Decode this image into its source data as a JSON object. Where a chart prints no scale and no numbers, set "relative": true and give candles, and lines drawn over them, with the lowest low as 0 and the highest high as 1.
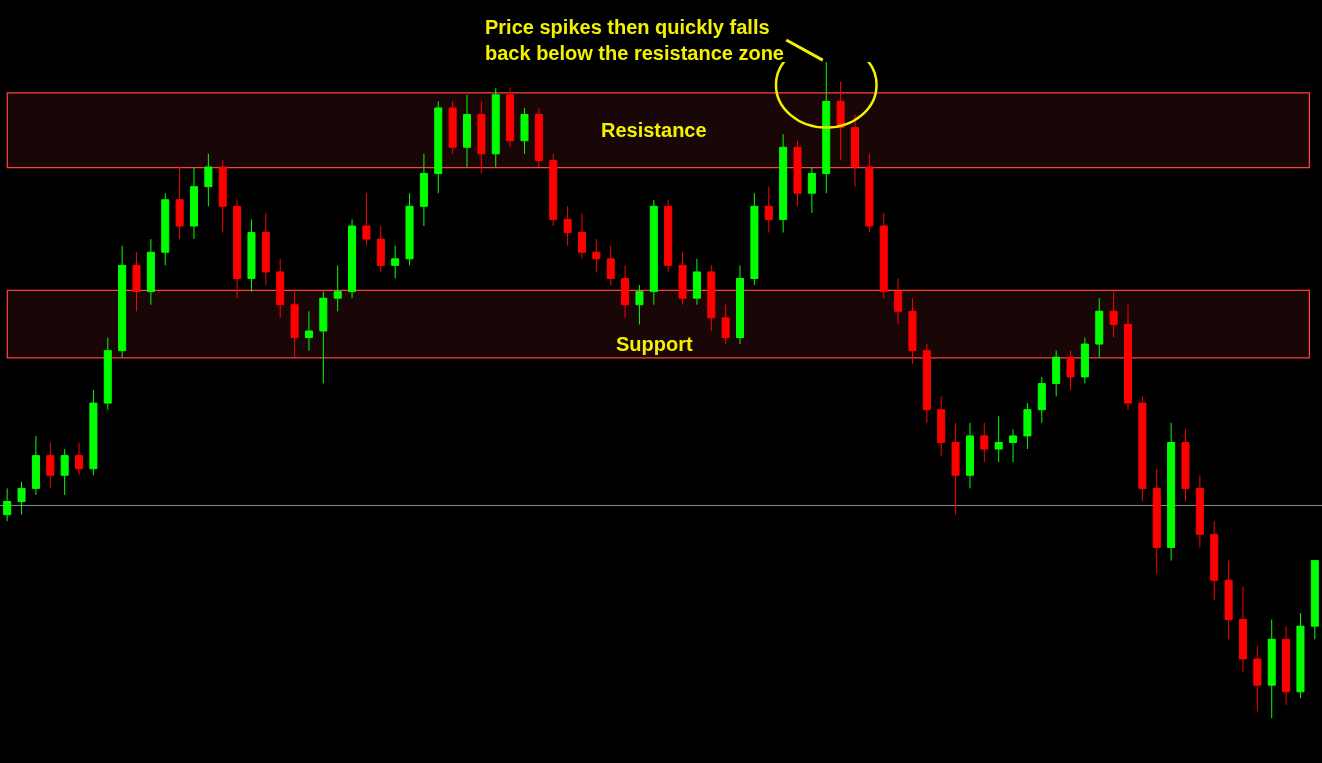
{
  "chart_data": {
    "type": "candlestick",
    "relative": true,
    "categories": [
      null,
      null,
      null,
      null,
      null,
      null,
      null,
      null,
      null,
      null,
      null,
      null,
      null,
      null,
      null,
      null,
      null,
      null,
      null,
      null,
      null,
      null,
      null,
      null,
      null,
      null,
      null,
      null,
      null,
      null,
      null,
      null,
      null,
      null,
      null,
      null,
      null,
      null,
      null,
      null,
      null,
      null,
      null,
      null,
      null,
      null,
      null,
      null,
      null,
      null,
      null,
      null,
      null,
      null,
      null,
      null,
      null,
      null,
      null,
      null,
      null,
      null,
      null,
      null,
      null,
      null,
      null,
      null,
      null,
      null,
      null,
      null,
      null,
      null,
      null,
      null,
      null,
      null,
      null,
      null,
      null,
      null,
      null,
      null,
      null,
      null,
      null,
      null,
      null,
      null,
      null,
      null
    ],
    "ohlc": [
      [
        0.31,
        0.35,
        0.3,
        0.33
      ],
      [
        0.33,
        0.36,
        0.31,
        0.35
      ],
      [
        0.35,
        0.43,
        0.34,
        0.4
      ],
      [
        0.4,
        0.42,
        0.35,
        0.37
      ],
      [
        0.37,
        0.41,
        0.34,
        0.4
      ],
      [
        0.4,
        0.42,
        0.37,
        0.38
      ],
      [
        0.38,
        0.5,
        0.37,
        0.48
      ],
      [
        0.48,
        0.58,
        0.47,
        0.56
      ],
      [
        0.56,
        0.72,
        0.55,
        0.69
      ],
      [
        0.69,
        0.71,
        0.62,
        0.65
      ],
      [
        0.65,
        0.73,
        0.63,
        0.71
      ],
      [
        0.71,
        0.8,
        0.69,
        0.79
      ],
      [
        0.79,
        0.84,
        0.73,
        0.75
      ],
      [
        0.75,
        0.84,
        0.73,
        0.81
      ],
      [
        0.81,
        0.86,
        0.78,
        0.84
      ],
      [
        0.84,
        0.85,
        0.74,
        0.78
      ],
      [
        0.78,
        0.79,
        0.64,
        0.67
      ],
      [
        0.67,
        0.76,
        0.65,
        0.74
      ],
      [
        0.74,
        0.77,
        0.66,
        0.68
      ],
      [
        0.68,
        0.7,
        0.61,
        0.63
      ],
      [
        0.63,
        0.65,
        0.55,
        0.58
      ],
      [
        0.58,
        0.62,
        0.56,
        0.59
      ],
      [
        0.59,
        0.65,
        0.51,
        0.64
      ],
      [
        0.64,
        0.69,
        0.62,
        0.65
      ],
      [
        0.65,
        0.76,
        0.64,
        0.75
      ],
      [
        0.75,
        0.8,
        0.72,
        0.73
      ],
      [
        0.73,
        0.75,
        0.68,
        0.69
      ],
      [
        0.69,
        0.72,
        0.67,
        0.7
      ],
      [
        0.7,
        0.8,
        0.69,
        0.78
      ],
      [
        0.78,
        0.86,
        0.75,
        0.83
      ],
      [
        0.83,
        0.94,
        0.8,
        0.93
      ],
      [
        0.93,
        0.94,
        0.86,
        0.87
      ],
      [
        0.87,
        0.95,
        0.84,
        0.92
      ],
      [
        0.92,
        0.94,
        0.83,
        0.86
      ],
      [
        0.86,
        0.96,
        0.84,
        0.95
      ],
      [
        0.95,
        0.96,
        0.87,
        0.88
      ],
      [
        0.88,
        0.93,
        0.86,
        0.92
      ],
      [
        0.92,
        0.93,
        0.84,
        0.85
      ],
      [
        0.85,
        0.86,
        0.75,
        0.76
      ],
      [
        0.76,
        0.78,
        0.72,
        0.74
      ],
      [
        0.74,
        0.77,
        0.7,
        0.71
      ],
      [
        0.71,
        0.73,
        0.68,
        0.7
      ],
      [
        0.7,
        0.72,
        0.66,
        0.67
      ],
      [
        0.67,
        0.69,
        0.61,
        0.63
      ],
      [
        0.63,
        0.66,
        0.6,
        0.65
      ],
      [
        0.65,
        0.79,
        0.63,
        0.78
      ],
      [
        0.78,
        0.79,
        0.68,
        0.69
      ],
      [
        0.69,
        0.71,
        0.63,
        0.64
      ],
      [
        0.64,
        0.7,
        0.63,
        0.68
      ],
      [
        0.68,
        0.69,
        0.59,
        0.61
      ],
      [
        0.61,
        0.63,
        0.57,
        0.58
      ],
      [
        0.58,
        0.69,
        0.57,
        0.67
      ],
      [
        0.67,
        0.8,
        0.66,
        0.78
      ],
      [
        0.78,
        0.81,
        0.74,
        0.76
      ],
      [
        0.76,
        0.89,
        0.74,
        0.87
      ],
      [
        0.87,
        0.88,
        0.78,
        0.8
      ],
      [
        0.8,
        0.84,
        0.77,
        0.83
      ],
      [
        0.83,
        1.0,
        0.8,
        0.94
      ],
      [
        0.94,
        0.97,
        0.85,
        0.9
      ],
      [
        0.9,
        0.92,
        0.81,
        0.84
      ],
      [
        0.84,
        0.86,
        0.74,
        0.75
      ],
      [
        0.75,
        0.77,
        0.64,
        0.65
      ],
      [
        0.65,
        0.67,
        0.6,
        0.62
      ],
      [
        0.62,
        0.64,
        0.54,
        0.56
      ],
      [
        0.56,
        0.57,
        0.45,
        0.47
      ],
      [
        0.47,
        0.49,
        0.4,
        0.42
      ],
      [
        0.42,
        0.45,
        0.31,
        0.37
      ],
      [
        0.37,
        0.45,
        0.35,
        0.43
      ],
      [
        0.43,
        0.45,
        0.39,
        0.41
      ],
      [
        0.41,
        0.46,
        0.39,
        0.42
      ],
      [
        0.42,
        0.44,
        0.39,
        0.43
      ],
      [
        0.43,
        0.48,
        0.41,
        0.47
      ],
      [
        0.47,
        0.52,
        0.45,
        0.51
      ],
      [
        0.51,
        0.56,
        0.49,
        0.55
      ],
      [
        0.55,
        0.56,
        0.5,
        0.52
      ],
      [
        0.52,
        0.58,
        0.51,
        0.57
      ],
      [
        0.57,
        0.64,
        0.55,
        0.62
      ],
      [
        0.62,
        0.65,
        0.58,
        0.6
      ],
      [
        0.6,
        0.63,
        0.47,
        0.48
      ],
      [
        0.48,
        0.49,
        0.33,
        0.35
      ],
      [
        0.35,
        0.38,
        0.22,
        0.26
      ],
      [
        0.26,
        0.45,
        0.24,
        0.42
      ],
      [
        0.42,
        0.44,
        0.33,
        0.35
      ],
      [
        0.35,
        0.37,
        0.26,
        0.28
      ],
      [
        0.28,
        0.3,
        0.18,
        0.21
      ],
      [
        0.21,
        0.24,
        0.12,
        0.15
      ],
      [
        0.15,
        0.2,
        0.07,
        0.09
      ],
      [
        0.09,
        0.11,
        0.01,
        0.05
      ],
      [
        0.05,
        0.15,
        0.0,
        0.12
      ],
      [
        0.12,
        0.14,
        0.02,
        0.04
      ],
      [
        0.04,
        0.16,
        0.03,
        0.14
      ],
      [
        0.14,
        0.24,
        0.12,
        0.24
      ]
    ],
    "colors": [
      "#00ff00",
      "#00ff00",
      "#00ff00",
      "#ff0000",
      "#00ff00",
      "#ff0000",
      "#00ff00",
      "#00ff00",
      "#00ff00",
      "#ff0000",
      "#00ff00",
      "#00ff00",
      "#ff0000",
      "#00ff00",
      "#00ff00",
      "#ff0000",
      "#ff0000",
      "#00ff00",
      "#ff0000",
      "#ff0000",
      "#ff0000",
      "#00ff00",
      "#00ff00",
      "#00ff00",
      "#00ff00",
      "#ff0000",
      "#ff0000",
      "#00ff00",
      "#00ff00",
      "#00ff00",
      "#00ff00",
      "#ff0000",
      "#00ff00",
      "#ff0000",
      "#00ff00",
      "#ff0000",
      "#00ff00",
      "#ff0000",
      "#ff0000",
      "#ff0000",
      "#ff0000",
      "#ff0000",
      "#ff0000",
      "#ff0000",
      "#00ff00",
      "#00ff00",
      "#ff0000",
      "#ff0000",
      "#00ff00",
      "#ff0000",
      "#ff0000",
      "#00ff00",
      "#00ff00",
      "#ff0000",
      "#00ff00",
      "#ff0000",
      "#00ff00",
      "#00ff00",
      "#ff0000",
      "#ff0000",
      "#ff0000",
      "#ff0000",
      "#ff0000",
      "#ff0000",
      "#ff0000",
      "#ff0000",
      "#ff0000",
      "#00ff00",
      "#ff0000",
      "#00ff00",
      "#00ff00",
      "#00ff00",
      "#00ff00",
      "#00ff00",
      "#ff0000",
      "#00ff00",
      "#00ff00",
      "#ff0000",
      "#ff0000",
      "#ff0000",
      "#ff0000",
      "#00ff00",
      "#ff0000",
      "#ff0000",
      "#ff0000",
      "#ff0000",
      "#ff0000",
      "#ff0000",
      "#00ff00",
      "#ff0000",
      "#00ff00",
      "#00ff00"
    ],
    "bands": [
      {
        "axis": "y",
        "from": 0.84,
        "to": 0.952,
        "label": "Resistance",
        "color": "#ff4040"
      },
      {
        "axis": "y",
        "from": 0.55,
        "to": 0.651,
        "label": "Support",
        "color": "#ff4040"
      }
    ],
    "ref_lines": [
      {
        "axis": "y",
        "value": 0.324,
        "color": "#8c8c8c"
      }
    ],
    "annotations": [
      "Price spikes then quickly falls\nback below the resistance zone"
    ]
  }
}
